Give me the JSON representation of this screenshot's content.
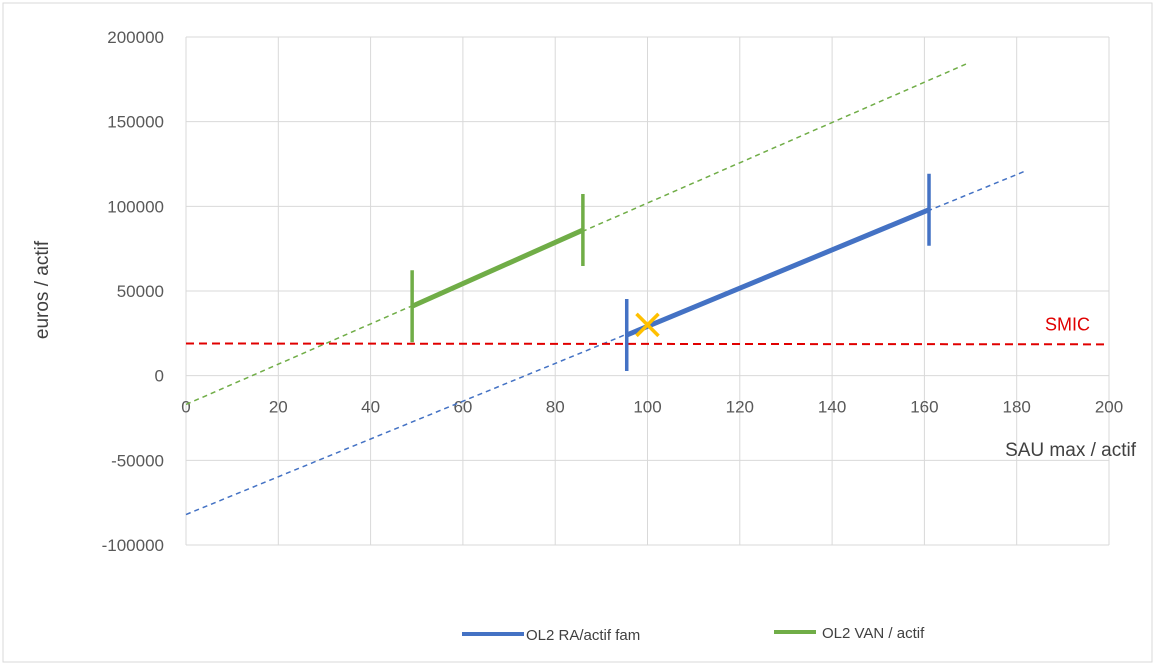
{
  "chart_data": {
    "type": "line",
    "title": "",
    "xlabel": "SAU max / actif",
    "ylabel": "euros / actif",
    "xlim": [
      0,
      200
    ],
    "ylim": [
      -100000,
      200000
    ],
    "x_ticks": [
      "0",
      "20",
      "40",
      "60",
      "80",
      "100",
      "120",
      "140",
      "160",
      "180",
      "200"
    ],
    "y_ticks": [
      "200000",
      "150000",
      "100000",
      "50000",
      "0",
      "-50000",
      "-100000"
    ],
    "grid": true,
    "legend_position": "bottom",
    "series": [
      {
        "name": "OL2 RA/actif fam",
        "color": "#4472C4",
        "segment": [
          [
            95.5,
            24000
          ],
          [
            161,
            98000
          ]
        ],
        "markers_x": [
          95.5,
          161
        ],
        "trend": [
          [
            0,
            -82000
          ],
          [
            182,
            121000
          ]
        ]
      },
      {
        "name": "OL2 VAN / actif",
        "color": "#70AD47",
        "segment": [
          [
            49,
            41000
          ],
          [
            86,
            86000
          ]
        ],
        "markers_x": [
          49,
          86
        ],
        "trend": [
          [
            0,
            -17000
          ],
          [
            169,
            184000
          ]
        ]
      }
    ],
    "reference_line": {
      "label": "SMIC",
      "color": "#E00000",
      "from": [
        0,
        19000
      ],
      "to": [
        200,
        18500
      ]
    },
    "point_marker": {
      "symbol": "×",
      "color": "#FFC000",
      "x": 100,
      "y": 30000
    }
  }
}
